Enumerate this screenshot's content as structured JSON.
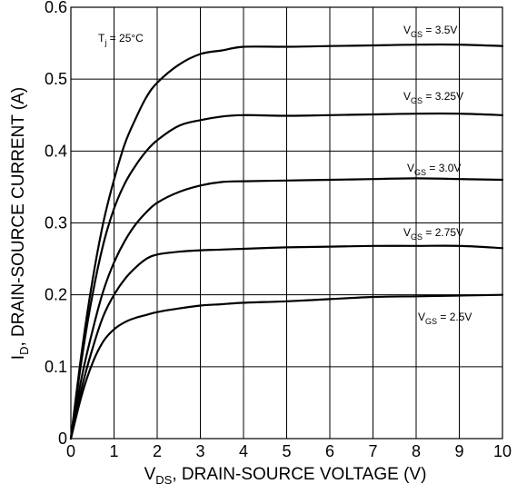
{
  "chart_data": {
    "type": "line",
    "xlabel": {
      "main": "V",
      "sub": "DS",
      "rest": ", DRAIN-SOURCE VOLTAGE (V)"
    },
    "ylabel": {
      "main": "I",
      "sub": "D",
      "rest": ", DRAIN-SOURCE CURRENT (A)"
    },
    "xlim": [
      0,
      10
    ],
    "ylim": [
      0,
      0.6
    ],
    "xticks": [
      "0",
      "1",
      "2",
      "3",
      "4",
      "5",
      "6",
      "7",
      "8",
      "9",
      "10"
    ],
    "yticks": [
      "0",
      "0.1",
      "0.2",
      "0.3",
      "0.4",
      "0.5",
      "0.6"
    ],
    "grid": true,
    "annotation": {
      "main": "T",
      "sub": "j",
      "rest": " = 25°C"
    },
    "series": [
      {
        "name": "VGS = 3.5V",
        "label": {
          "main": "V",
          "sub": "GS",
          "rest": " = 3.5V"
        },
        "x": [
          0,
          0.25,
          0.5,
          0.75,
          1,
          1.25,
          1.5,
          1.75,
          2,
          2.5,
          3,
          3.5,
          4,
          5,
          6,
          7,
          8,
          9,
          10
        ],
        "y": [
          0,
          0.12,
          0.22,
          0.3,
          0.36,
          0.41,
          0.445,
          0.475,
          0.495,
          0.52,
          0.535,
          0.54,
          0.545,
          0.545,
          0.546,
          0.547,
          0.548,
          0.548,
          0.546
        ]
      },
      {
        "name": "VGS = 3.25V",
        "label": {
          "main": "V",
          "sub": "GS",
          "rest": " = 3.25V"
        },
        "x": [
          0,
          0.25,
          0.5,
          0.75,
          1,
          1.25,
          1.5,
          1.75,
          2,
          2.5,
          3,
          3.5,
          4,
          5,
          6,
          7,
          8,
          9,
          10
        ],
        "y": [
          0,
          0.11,
          0.2,
          0.27,
          0.32,
          0.355,
          0.38,
          0.4,
          0.415,
          0.435,
          0.443,
          0.448,
          0.45,
          0.449,
          0.45,
          0.451,
          0.452,
          0.452,
          0.45
        ]
      },
      {
        "name": "VGS = 3.0V",
        "label": {
          "main": "V",
          "sub": "GS",
          "rest": " = 3.0V"
        },
        "x": [
          0,
          0.25,
          0.5,
          0.75,
          1,
          1.25,
          1.5,
          1.75,
          2,
          2.5,
          3,
          3.5,
          4,
          5,
          6,
          7,
          8,
          9,
          10
        ],
        "y": [
          0,
          0.085,
          0.15,
          0.205,
          0.245,
          0.275,
          0.298,
          0.315,
          0.328,
          0.343,
          0.352,
          0.357,
          0.358,
          0.359,
          0.36,
          0.361,
          0.362,
          0.361,
          0.36
        ]
      },
      {
        "name": "VGS = 2.75V",
        "label": {
          "main": "V",
          "sub": "GS",
          "rest": " = 2.75V"
        },
        "x": [
          0,
          0.25,
          0.5,
          0.75,
          1,
          1.25,
          1.5,
          1.75,
          2,
          2.5,
          3,
          3.5,
          4,
          5,
          6,
          7,
          8,
          9,
          10
        ],
        "y": [
          0,
          0.07,
          0.125,
          0.17,
          0.2,
          0.222,
          0.238,
          0.25,
          0.256,
          0.26,
          0.262,
          0.263,
          0.264,
          0.266,
          0.267,
          0.268,
          0.268,
          0.268,
          0.265
        ]
      },
      {
        "name": "VGS = 2.5V",
        "label": {
          "main": "V",
          "sub": "GS",
          "rest": " = 2.5V"
        },
        "x": [
          0,
          0.25,
          0.5,
          0.75,
          1,
          1.25,
          1.5,
          1.75,
          2,
          2.5,
          3,
          3.5,
          4,
          5,
          6,
          7,
          8,
          9,
          10
        ],
        "y": [
          0,
          0.06,
          0.105,
          0.135,
          0.152,
          0.162,
          0.168,
          0.172,
          0.176,
          0.181,
          0.185,
          0.187,
          0.189,
          0.191,
          0.194,
          0.197,
          0.198,
          0.199,
          0.2
        ]
      }
    ]
  }
}
